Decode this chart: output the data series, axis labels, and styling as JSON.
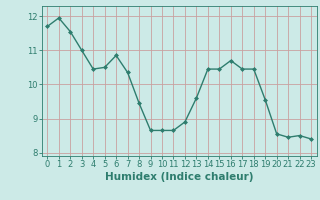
{
  "x": [
    0,
    1,
    2,
    3,
    4,
    5,
    6,
    7,
    8,
    9,
    10,
    11,
    12,
    13,
    14,
    15,
    16,
    17,
    18,
    19,
    20,
    21,
    22,
    23
  ],
  "y": [
    11.7,
    11.95,
    11.55,
    11.0,
    10.45,
    10.5,
    10.85,
    10.35,
    9.45,
    8.65,
    8.65,
    8.65,
    8.9,
    9.6,
    10.45,
    10.45,
    10.7,
    10.45,
    10.45,
    9.55,
    8.55,
    8.45,
    8.5,
    8.4
  ],
  "xlim": [
    -0.5,
    23.5
  ],
  "ylim": [
    7.9,
    12.3
  ],
  "yticks": [
    8,
    9,
    10,
    11,
    12
  ],
  "xticks": [
    0,
    1,
    2,
    3,
    4,
    5,
    6,
    7,
    8,
    9,
    10,
    11,
    12,
    13,
    14,
    15,
    16,
    17,
    18,
    19,
    20,
    21,
    22,
    23
  ],
  "xlabel": "Humidex (Indice chaleur)",
  "line_color": "#2e7d6e",
  "marker": "D",
  "marker_size": 2,
  "bg_color": "#cceae7",
  "grid_color": "#c9a0a0",
  "axis_color": "#2e7d6e",
  "tick_label_fontsize": 6,
  "xlabel_fontsize": 7.5,
  "linewidth": 1.0
}
